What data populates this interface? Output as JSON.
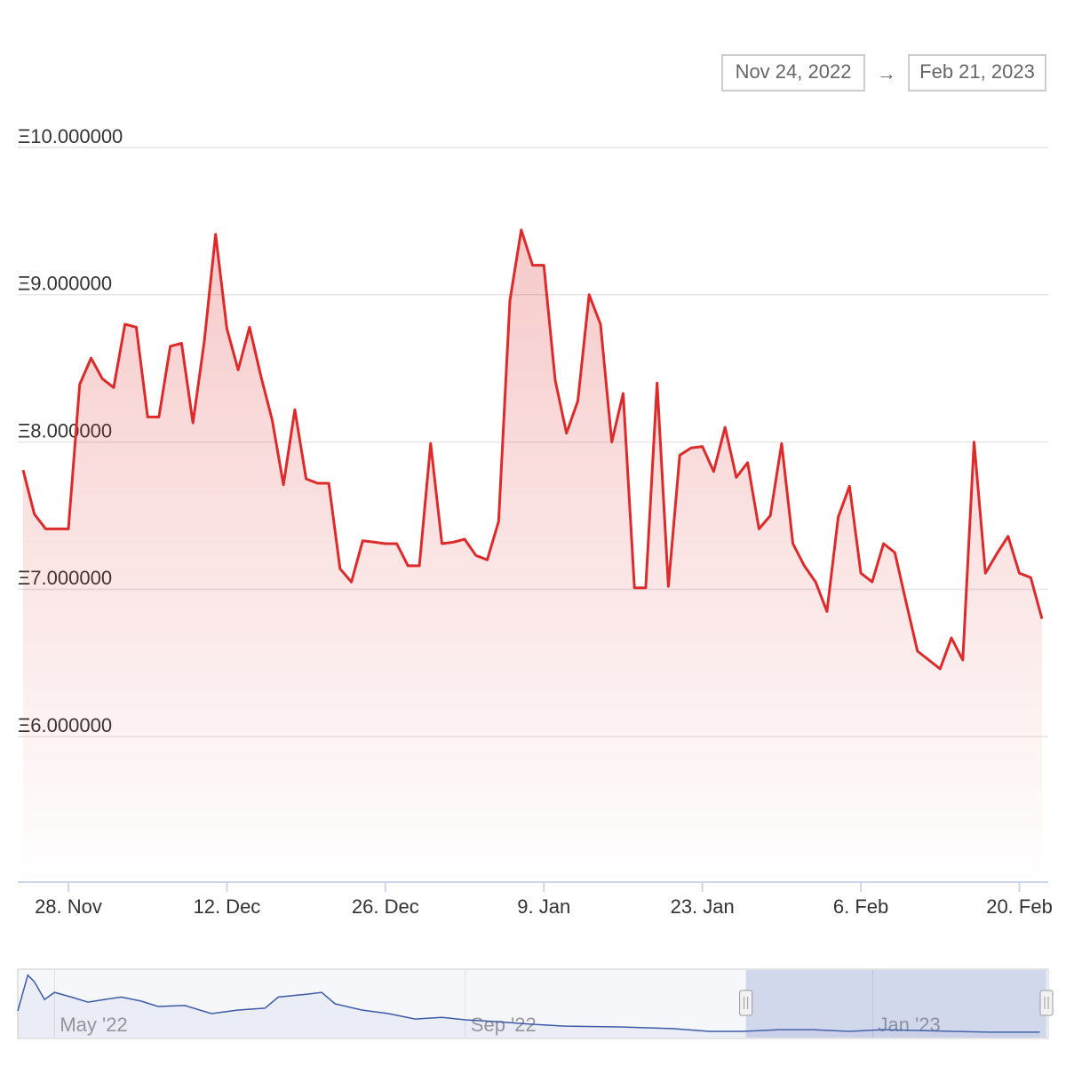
{
  "range_selector": {
    "from": "Nov 24, 2022",
    "separator": "→",
    "to": "Feb 21, 2023"
  },
  "chart_data": [
    {
      "type": "area",
      "color": "#dd2a2a",
      "grid": true,
      "x": [
        "2022-11-24",
        "2022-11-25",
        "2022-11-26",
        "2022-11-27",
        "2022-11-28",
        "2022-11-29",
        "2022-11-30",
        "2022-12-01",
        "2022-12-02",
        "2022-12-03",
        "2022-12-04",
        "2022-12-05",
        "2022-12-06",
        "2022-12-07",
        "2022-12-08",
        "2022-12-09",
        "2022-12-10",
        "2022-12-11",
        "2022-12-12",
        "2022-12-13",
        "2022-12-14",
        "2022-12-15",
        "2022-12-16",
        "2022-12-17",
        "2022-12-18",
        "2022-12-19",
        "2022-12-20",
        "2022-12-21",
        "2022-12-22",
        "2022-12-23",
        "2022-12-24",
        "2022-12-25",
        "2022-12-26",
        "2022-12-27",
        "2022-12-28",
        "2022-12-29",
        "2022-12-30",
        "2022-12-31",
        "2023-01-01",
        "2023-01-02",
        "2023-01-03",
        "2023-01-04",
        "2023-01-05",
        "2023-01-06",
        "2023-01-07",
        "2023-01-08",
        "2023-01-09",
        "2023-01-10",
        "2023-01-11",
        "2023-01-12",
        "2023-01-13",
        "2023-01-14",
        "2023-01-15",
        "2023-01-16",
        "2023-01-17",
        "2023-01-18",
        "2023-01-19",
        "2023-01-20",
        "2023-01-21",
        "2023-01-22",
        "2023-01-23",
        "2023-01-24",
        "2023-01-25",
        "2023-01-26",
        "2023-01-27",
        "2023-01-28",
        "2023-01-29",
        "2023-01-30",
        "2023-01-31",
        "2023-02-01",
        "2023-02-02",
        "2023-02-03",
        "2023-02-04",
        "2023-02-05",
        "2023-02-06",
        "2023-02-07",
        "2023-02-08",
        "2023-02-09",
        "2023-02-10",
        "2023-02-11",
        "2023-02-12",
        "2023-02-13",
        "2023-02-14",
        "2023-02-15",
        "2023-02-16",
        "2023-02-17",
        "2023-02-18",
        "2023-02-19",
        "2023-02-20",
        "2023-02-21",
        "2023-02-22"
      ],
      "values": [
        7.81,
        7.51,
        7.41,
        7.41,
        7.41,
        8.39,
        8.57,
        8.43,
        8.37,
        8.8,
        8.78,
        8.17,
        8.17,
        8.65,
        8.67,
        8.13,
        8.68,
        9.41,
        8.77,
        8.49,
        8.78,
        8.45,
        8.15,
        7.71,
        8.22,
        7.75,
        7.72,
        7.72,
        7.14,
        7.05,
        7.33,
        7.32,
        7.31,
        7.31,
        7.16,
        7.16,
        7.99,
        7.31,
        7.32,
        7.34,
        7.23,
        7.2,
        7.46,
        8.96,
        9.44,
        9.2,
        9.2,
        8.42,
        8.06,
        8.28,
        9.0,
        8.8,
        8.0,
        8.33,
        7.01,
        7.01,
        8.4,
        7.02,
        7.91,
        7.96,
        7.97,
        7.8,
        8.1,
        7.76,
        7.86,
        7.41,
        7.5,
        7.99,
        7.31,
        7.16,
        7.05,
        6.85,
        7.49,
        7.7,
        7.11,
        7.05,
        7.31,
        7.25,
        6.91,
        6.58,
        6.52,
        6.46,
        6.67,
        6.52,
        8.0,
        7.11,
        7.24,
        7.36,
        7.11,
        7.08,
        6.8
      ],
      "xlim": [
        "2022-11-24",
        "2023-02-22"
      ],
      "xticks": [
        {
          "value": "2022-11-28",
          "label": "28. Nov"
        },
        {
          "value": "2022-12-12",
          "label": "12. Dec"
        },
        {
          "value": "2022-12-26",
          "label": "26. Dec"
        },
        {
          "value": "2023-01-09",
          "label": "9. Jan"
        },
        {
          "value": "2023-01-23",
          "label": "23. Jan"
        },
        {
          "value": "2023-02-06",
          "label": "6. Feb"
        },
        {
          "value": "2023-02-20",
          "label": "20. Feb"
        }
      ],
      "ylim": [
        5,
        10
      ],
      "yticks": [
        {
          "value": 6,
          "label": "Ξ6.000000"
        },
        {
          "value": 7,
          "label": "Ξ7.000000"
        },
        {
          "value": 8,
          "label": "Ξ8.000000"
        },
        {
          "value": 9,
          "label": "Ξ9.000000"
        },
        {
          "value": 10,
          "label": "Ξ10.000000"
        }
      ]
    },
    {
      "type": "navigator",
      "color": "#3b5ba5",
      "x": [
        "2022-04-20",
        "2022-04-23",
        "2022-04-25",
        "2022-04-28",
        "2022-05-01",
        "2022-05-06",
        "2022-05-11",
        "2022-05-16",
        "2022-05-21",
        "2022-05-27",
        "2022-06-01",
        "2022-06-09",
        "2022-06-17",
        "2022-06-25",
        "2022-07-03",
        "2022-07-07",
        "2022-07-16",
        "2022-07-20",
        "2022-07-24",
        "2022-08-01",
        "2022-08-09",
        "2022-08-17",
        "2022-08-25",
        "2022-09-01",
        "2022-09-10",
        "2022-09-21",
        "2022-10-01",
        "2022-10-17",
        "2022-11-02",
        "2022-11-13",
        "2022-11-23",
        "2022-12-04",
        "2022-12-14",
        "2022-12-25",
        "2023-01-04",
        "2023-01-15",
        "2023-01-25",
        "2023-02-05",
        "2023-02-20"
      ],
      "values": [
        20.8,
        42,
        38,
        27.6,
        31.8,
        29,
        26,
        27.6,
        29,
        26.6,
        23.4,
        24,
        19.2,
        21.3,
        22.4,
        29,
        30.8,
        31.8,
        25,
        21.3,
        19.2,
        16,
        17,
        15.5,
        14.5,
        12.9,
        11.8,
        11.3,
        10.3,
        8.7,
        8.7,
        9.7,
        9.7,
        8.7,
        9.7,
        9.2,
        8.7,
        8.2,
        8.2
      ],
      "xlim": [
        "2022-04-20",
        "2023-02-22"
      ],
      "xticks": [
        {
          "value": "2022-05-01",
          "label": "May '22"
        },
        {
          "value": "2022-09-01",
          "label": "Sep '22"
        },
        {
          "value": "2023-01-01",
          "label": "Jan '23"
        }
      ],
      "ylim": [
        5,
        45
      ]
    }
  ]
}
